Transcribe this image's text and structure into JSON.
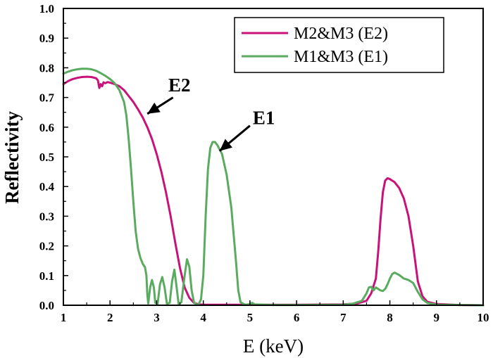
{
  "chart_data": {
    "type": "line",
    "xlabel": "E (keV)",
    "ylabel": "Reflectivity",
    "xlim": [
      1,
      10
    ],
    "ylim": [
      0,
      1.0
    ],
    "x_ticks": [
      "1",
      "2",
      "3",
      "4",
      "5",
      "6",
      "7",
      "8",
      "9",
      "10"
    ],
    "y_ticks": [
      "0.0",
      "0.1",
      "0.2",
      "0.3",
      "0.4",
      "0.5",
      "0.6",
      "0.7",
      "0.8",
      "0.9",
      "1.0"
    ],
    "legend_position": "top-right",
    "series": [
      {
        "name": "M2&M3 (E2)",
        "color": "#c8127a",
        "points": [
          [
            1.0,
            0.745
          ],
          [
            1.1,
            0.755
          ],
          [
            1.2,
            0.762
          ],
          [
            1.3,
            0.766
          ],
          [
            1.4,
            0.769
          ],
          [
            1.5,
            0.77
          ],
          [
            1.6,
            0.769
          ],
          [
            1.7,
            0.765
          ],
          [
            1.74,
            0.758
          ],
          [
            1.77,
            0.732
          ],
          [
            1.8,
            0.745
          ],
          [
            1.83,
            0.738
          ],
          [
            1.86,
            0.751
          ],
          [
            1.9,
            0.748
          ],
          [
            1.95,
            0.752
          ],
          [
            2.0,
            0.75
          ],
          [
            2.1,
            0.745
          ],
          [
            2.2,
            0.738
          ],
          [
            2.3,
            0.725
          ],
          [
            2.4,
            0.705
          ],
          [
            2.5,
            0.685
          ],
          [
            2.6,
            0.66
          ],
          [
            2.7,
            0.633
          ],
          [
            2.8,
            0.6
          ],
          [
            2.9,
            0.56
          ],
          [
            3.0,
            0.51
          ],
          [
            3.1,
            0.45
          ],
          [
            3.2,
            0.38
          ],
          [
            3.3,
            0.3
          ],
          [
            3.4,
            0.21
          ],
          [
            3.5,
            0.125
          ],
          [
            3.6,
            0.06
          ],
          [
            3.7,
            0.025
          ],
          [
            3.8,
            0.008
          ],
          [
            3.9,
            0.003
          ],
          [
            4.0,
            0.002
          ],
          [
            5.0,
            0.002
          ],
          [
            6.0,
            0.002
          ],
          [
            7.0,
            0.003
          ],
          [
            7.3,
            0.006
          ],
          [
            7.5,
            0.015
          ],
          [
            7.6,
            0.04
          ],
          [
            7.7,
            0.09
          ],
          [
            7.75,
            0.18
          ],
          [
            7.8,
            0.29
          ],
          [
            7.85,
            0.38
          ],
          [
            7.9,
            0.42
          ],
          [
            7.95,
            0.428
          ],
          [
            8.0,
            0.425
          ],
          [
            8.1,
            0.415
          ],
          [
            8.2,
            0.395
          ],
          [
            8.3,
            0.36
          ],
          [
            8.4,
            0.3
          ],
          [
            8.5,
            0.2
          ],
          [
            8.6,
            0.08
          ],
          [
            8.7,
            0.03
          ],
          [
            8.8,
            0.012
          ],
          [
            9.0,
            0.004
          ],
          [
            9.5,
            0.001
          ],
          [
            10.0,
            0.0
          ]
        ]
      },
      {
        "name": "M1&M3 (E1)",
        "color": "#5aab5f",
        "points": [
          [
            1.0,
            0.78
          ],
          [
            1.1,
            0.787
          ],
          [
            1.2,
            0.792
          ],
          [
            1.3,
            0.795
          ],
          [
            1.4,
            0.797
          ],
          [
            1.5,
            0.797
          ],
          [
            1.6,
            0.795
          ],
          [
            1.7,
            0.79
          ],
          [
            1.8,
            0.782
          ],
          [
            1.9,
            0.773
          ],
          [
            2.0,
            0.762
          ],
          [
            2.1,
            0.748
          ],
          [
            2.2,
            0.725
          ],
          [
            2.3,
            0.685
          ],
          [
            2.35,
            0.64
          ],
          [
            2.4,
            0.56
          ],
          [
            2.45,
            0.46
          ],
          [
            2.5,
            0.35
          ],
          [
            2.55,
            0.25
          ],
          [
            2.6,
            0.19
          ],
          [
            2.65,
            0.16
          ],
          [
            2.7,
            0.14
          ],
          [
            2.75,
            0.128
          ],
          [
            2.78,
            0.1
          ],
          [
            2.8,
            0.035
          ],
          [
            2.82,
            0.006
          ],
          [
            2.86,
            0.06
          ],
          [
            2.9,
            0.085
          ],
          [
            2.94,
            0.06
          ],
          [
            2.97,
            0.008
          ],
          [
            3.02,
            0.005
          ],
          [
            3.07,
            0.07
          ],
          [
            3.12,
            0.095
          ],
          [
            3.17,
            0.06
          ],
          [
            3.22,
            0.005
          ],
          [
            3.28,
            0.008
          ],
          [
            3.33,
            0.08
          ],
          [
            3.38,
            0.12
          ],
          [
            3.42,
            0.07
          ],
          [
            3.47,
            0.005
          ],
          [
            3.53,
            0.01
          ],
          [
            3.6,
            0.1
          ],
          [
            3.65,
            0.155
          ],
          [
            3.7,
            0.13
          ],
          [
            3.75,
            0.05
          ],
          [
            3.8,
            0.01
          ],
          [
            3.85,
            0.002
          ],
          [
            3.9,
            0.003
          ],
          [
            3.95,
            0.02
          ],
          [
            4.0,
            0.1
          ],
          [
            4.05,
            0.3
          ],
          [
            4.1,
            0.46
          ],
          [
            4.15,
            0.53
          ],
          [
            4.2,
            0.55
          ],
          [
            4.25,
            0.55
          ],
          [
            4.3,
            0.54
          ],
          [
            4.4,
            0.51
          ],
          [
            4.5,
            0.44
          ],
          [
            4.6,
            0.33
          ],
          [
            4.7,
            0.15
          ],
          [
            4.75,
            0.05
          ],
          [
            4.8,
            0.01
          ],
          [
            4.9,
            0.002
          ],
          [
            5.0,
            0.004
          ],
          [
            5.05,
            0.008
          ],
          [
            5.1,
            0.003
          ],
          [
            5.5,
            0.001
          ],
          [
            6.0,
            0.001
          ],
          [
            7.0,
            0.002
          ],
          [
            7.2,
            0.005
          ],
          [
            7.4,
            0.015
          ],
          [
            7.5,
            0.04
          ],
          [
            7.55,
            0.06
          ],
          [
            7.6,
            0.062
          ],
          [
            7.65,
            0.05
          ],
          [
            7.7,
            0.06
          ],
          [
            7.75,
            0.055
          ],
          [
            7.8,
            0.05
          ],
          [
            7.85,
            0.048
          ],
          [
            7.9,
            0.055
          ],
          [
            7.95,
            0.07
          ],
          [
            8.0,
            0.09
          ],
          [
            8.05,
            0.105
          ],
          [
            8.1,
            0.11
          ],
          [
            8.2,
            0.102
          ],
          [
            8.3,
            0.09
          ],
          [
            8.4,
            0.085
          ],
          [
            8.5,
            0.075
          ],
          [
            8.6,
            0.045
          ],
          [
            8.7,
            0.02
          ],
          [
            8.8,
            0.008
          ],
          [
            9.0,
            0.002
          ],
          [
            9.5,
            0.001
          ],
          [
            10.0,
            0.0
          ]
        ]
      }
    ],
    "annotations": [
      {
        "text": "E2",
        "label_at": [
          3.25,
          0.72
        ],
        "arrow_from": [
          3.35,
          0.7
        ],
        "arrow_to": [
          2.8,
          0.645
        ]
      },
      {
        "text": "E1",
        "label_at": [
          5.06,
          0.61
        ],
        "arrow_from": [
          5.0,
          0.605
        ],
        "arrow_to": [
          4.35,
          0.52
        ]
      }
    ]
  }
}
